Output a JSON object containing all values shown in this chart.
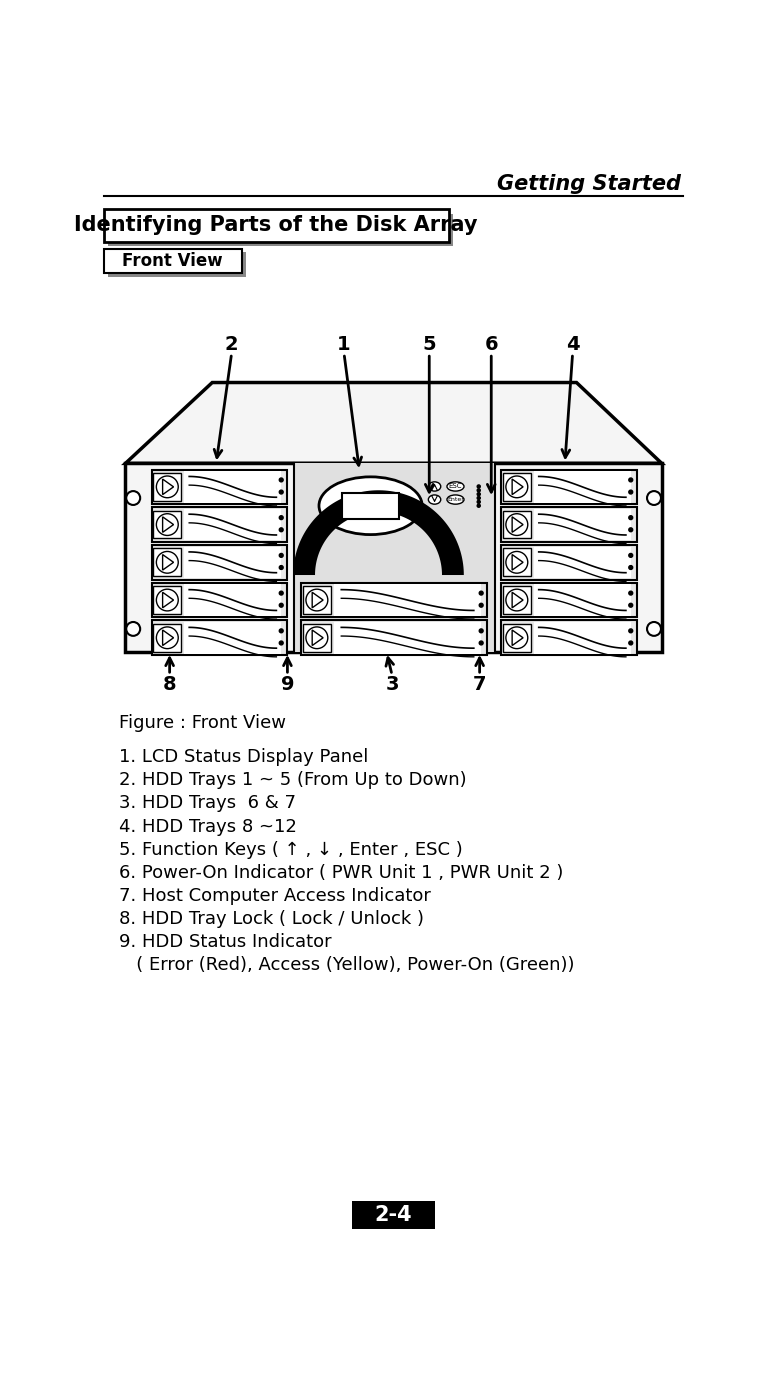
{
  "title_header": "Getting Started",
  "box1_text": "Identifying Parts of the Disk Array",
  "box2_text": "Front View",
  "figure_caption": "Figure : Front View",
  "list_items": [
    "1. LCD Status Display Panel",
    "2. HDD Trays 1 ~ 5 (From Up to Down)",
    "3. HDD Trays  6 & 7",
    "4. HDD Trays 8 ~12",
    "5. Function Keys ( ↑ , ↓ , Enter , ESC )",
    "6. Power-On Indicator ( PWR Unit 1 , PWR Unit 2 )",
    "7. Host Computer Access Indicator",
    "8. HDD Tray Lock ( Lock / Unlock )",
    "9. HDD Status Indicator",
    "   ( Error (Red), Access (Yellow), Power-On (Green))"
  ],
  "page_number": "2-4",
  "bg": "#ffffff",
  "black": "#000000",
  "gray_shadow": "#888888",
  "gray_light": "#e8e8e8",
  "gray_mid": "#cccccc",
  "gray_dark": "#aaaaaa",
  "chassis_fill": "#f5f5f5",
  "center_fill": "#e0e0e0"
}
